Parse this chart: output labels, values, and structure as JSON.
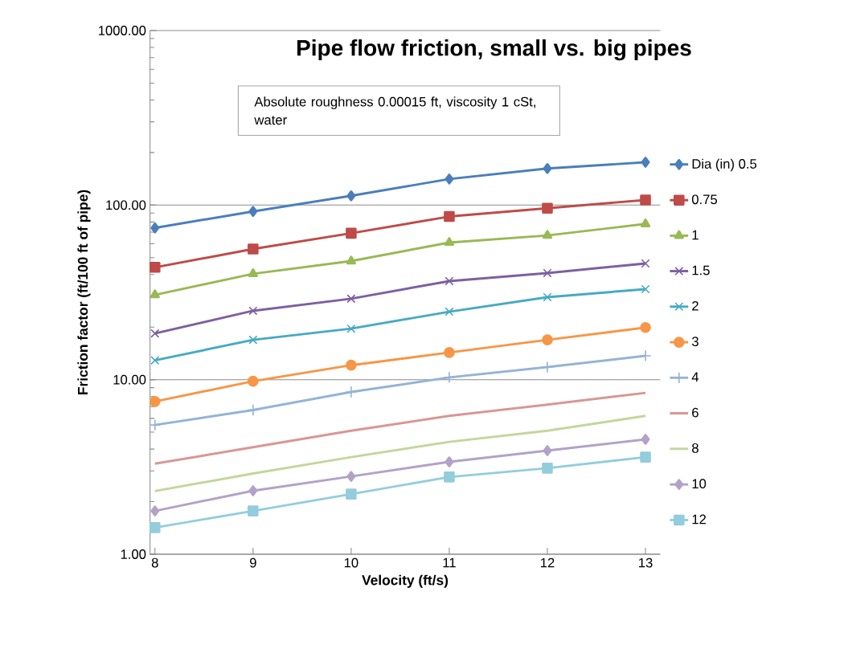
{
  "chart_data": {
    "type": "line",
    "title": "Pipe flow friction, small vs. big pipes",
    "xlabel": "Velocity (ft/s)",
    "ylabel": "Friction factor (ft/100 ft of pipe)",
    "annotations": [
      "Absolute roughness 0.00015 ft, viscosity 1 cSt, water"
    ],
    "x": [
      8,
      9,
      10,
      11,
      12,
      13
    ],
    "series": [
      {
        "name": "Dia (in) 0.5",
        "color": "#4a7ebb",
        "marker": "diamond",
        "values": [
          74,
          92,
          113,
          141,
          162,
          176
        ]
      },
      {
        "name": "0.75",
        "color": "#be4b48",
        "marker": "square",
        "values": [
          44,
          56,
          69,
          86,
          96,
          107
        ]
      },
      {
        "name": "1",
        "color": "#98b954",
        "marker": "triangle",
        "values": [
          30.6,
          40.4,
          47.8,
          61,
          67,
          78
        ]
      },
      {
        "name": "1.5",
        "color": "#7d60a0",
        "marker": "cross",
        "values": [
          18.4,
          24.8,
          29.1,
          36.7,
          40.8,
          46.3
        ]
      },
      {
        "name": "2",
        "color": "#46aac5",
        "marker": "cross",
        "values": [
          12.9,
          16.9,
          19.6,
          24.5,
          29.7,
          33
        ]
      },
      {
        "name": "3",
        "color": "#f79646",
        "marker": "circle",
        "values": [
          7.5,
          9.8,
          12.1,
          14.3,
          16.9,
          19.9
        ]
      },
      {
        "name": "4",
        "color": "#95b3d7",
        "marker": "plus",
        "values": [
          5.5,
          6.7,
          8.5,
          10.3,
          11.8,
          13.7
        ]
      },
      {
        "name": "6",
        "color": "#d99694",
        "marker": "none",
        "values": [
          3.3,
          4.1,
          5.1,
          6.2,
          7.2,
          8.4
        ]
      },
      {
        "name": "8",
        "color": "#c3d69b",
        "marker": "none",
        "values": [
          2.3,
          2.9,
          3.6,
          4.4,
          5.1,
          6.2
        ]
      },
      {
        "name": "10",
        "color": "#b3a2c7",
        "marker": "diamond",
        "values": [
          1.77,
          2.31,
          2.79,
          3.38,
          3.92,
          4.55
        ]
      },
      {
        "name": "12",
        "color": "#93cddd",
        "marker": "square",
        "values": [
          1.42,
          1.77,
          2.21,
          2.77,
          3.11,
          3.6
        ]
      }
    ],
    "xlim": [
      7.95,
      13.15
    ],
    "xticks": [
      8,
      9,
      10,
      11,
      12,
      13
    ],
    "ylim": [
      1,
      1000
    ],
    "yticks": [
      {
        "value": 1,
        "label": "1.00"
      },
      {
        "value": 10,
        "label": "10.00"
      },
      {
        "value": 100,
        "label": "100.00"
      },
      {
        "value": 1000,
        "label": "1000.00"
      }
    ],
    "log": true,
    "grid": "y",
    "legend": "right",
    "line_style": "solid"
  }
}
